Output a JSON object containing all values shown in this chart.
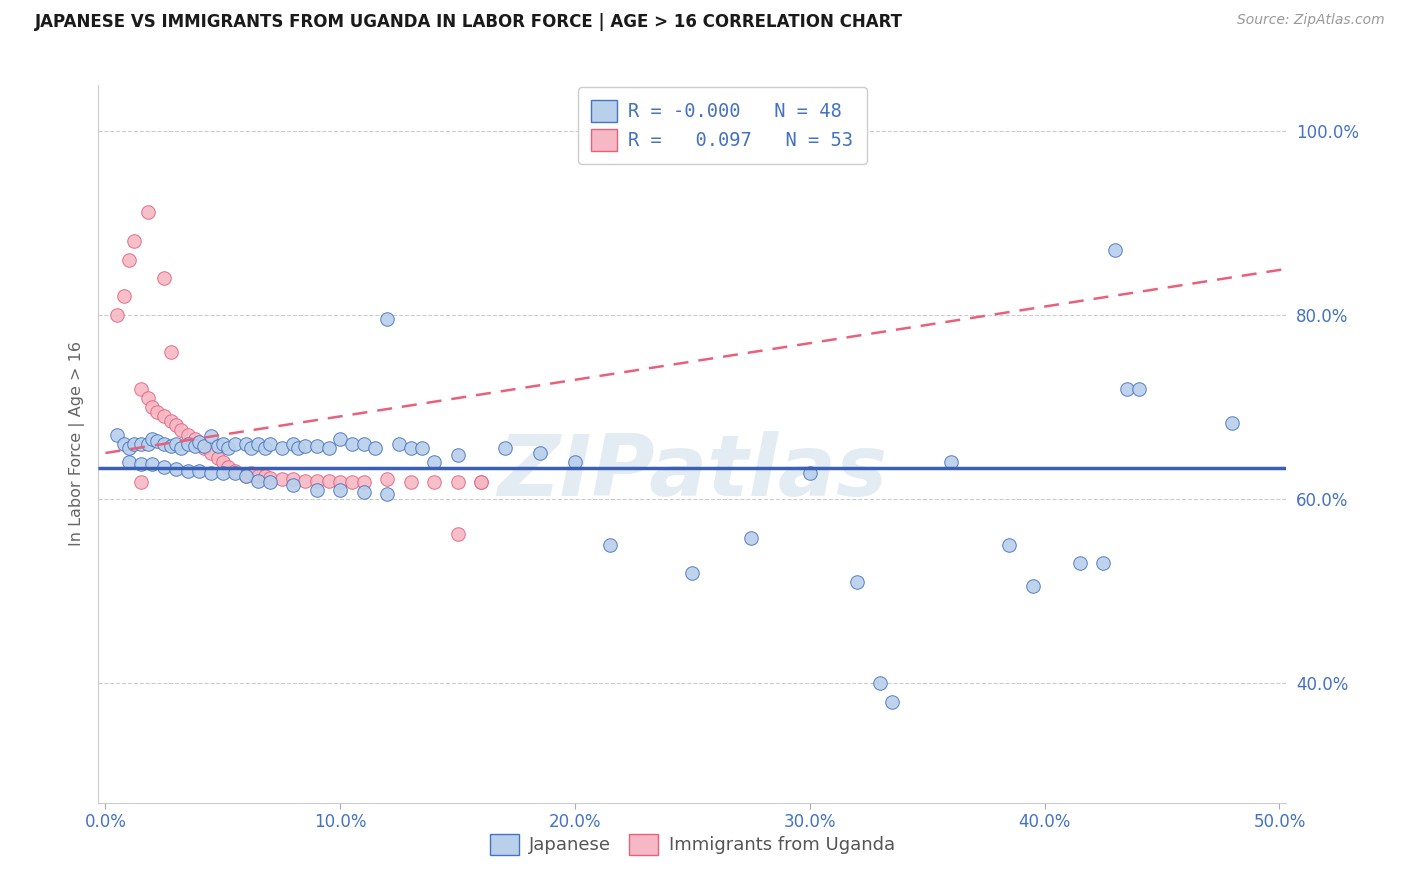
{
  "title": "JAPANESE VS IMMIGRANTS FROM UGANDA IN LABOR FORCE | AGE > 16 CORRELATION CHART",
  "source": "Source: ZipAtlas.com",
  "ylabel": "In Labor Force | Age > 16",
  "xlim": [
    -0.003,
    0.503
  ],
  "ylim": [
    0.27,
    1.05
  ],
  "xtick_vals": [
    0.0,
    0.1,
    0.2,
    0.3,
    0.4,
    0.5
  ],
  "xtick_labels": [
    "0.0%",
    "10.0%",
    "20.0%",
    "30.0%",
    "40.0%",
    "50.0%"
  ],
  "ytick_vals": [
    0.4,
    0.6,
    0.8,
    1.0
  ],
  "ytick_labels": [
    "40.0%",
    "60.0%",
    "80.0%",
    "100.0%"
  ],
  "R1": "-0.000",
  "N1": "48",
  "R2": "0.097",
  "N2": "53",
  "blue_face": "#b8d0ea",
  "blue_edge": "#4472c4",
  "pink_face": "#f5b8c4",
  "pink_edge": "#e8607a",
  "blue_trend_color": "#3a5fb5",
  "pink_trend_color": "#e8607a",
  "grid_color": "#cccccc",
  "bg_color": "#ffffff",
  "watermark": "ZIPatlas",
  "label1": "Japanese",
  "label2": "Immigrants from Uganda",
  "blue_x": [
    0.005,
    0.008,
    0.01,
    0.012,
    0.015,
    0.018,
    0.02,
    0.022,
    0.025,
    0.028,
    0.03,
    0.032,
    0.035,
    0.038,
    0.04,
    0.042,
    0.045,
    0.048,
    0.05,
    0.052,
    0.055,
    0.06,
    0.062,
    0.065,
    0.068,
    0.07,
    0.075,
    0.08,
    0.082,
    0.085,
    0.09,
    0.095,
    0.1,
    0.105,
    0.11,
    0.115,
    0.12,
    0.125,
    0.13,
    0.135,
    0.14,
    0.15,
    0.17,
    0.185,
    0.2,
    0.215,
    0.25,
    0.275,
    0.3,
    0.32,
    0.33,
    0.335,
    0.36,
    0.385,
    0.395,
    0.415,
    0.425,
    0.435,
    0.44,
    0.48,
    0.01,
    0.015,
    0.02,
    0.025,
    0.03,
    0.035,
    0.04,
    0.045,
    0.05,
    0.055,
    0.06,
    0.065,
    0.07,
    0.08,
    0.09,
    0.1,
    0.11,
    0.12,
    0.43
  ],
  "blue_y": [
    0.67,
    0.66,
    0.655,
    0.66,
    0.66,
    0.66,
    0.665,
    0.663,
    0.66,
    0.658,
    0.66,
    0.655,
    0.66,
    0.658,
    0.662,
    0.658,
    0.668,
    0.658,
    0.66,
    0.655,
    0.66,
    0.66,
    0.655,
    0.66,
    0.655,
    0.66,
    0.655,
    0.66,
    0.655,
    0.658,
    0.658,
    0.655,
    0.665,
    0.66,
    0.66,
    0.655,
    0.795,
    0.66,
    0.655,
    0.655,
    0.64,
    0.648,
    0.655,
    0.65,
    0.64,
    0.55,
    0.52,
    0.558,
    0.628,
    0.51,
    0.4,
    0.38,
    0.64,
    0.55,
    0.505,
    0.53,
    0.53,
    0.72,
    0.72,
    0.683,
    0.64,
    0.638,
    0.638,
    0.635,
    0.633,
    0.63,
    0.63,
    0.628,
    0.628,
    0.628,
    0.625,
    0.62,
    0.618,
    0.615,
    0.61,
    0.61,
    0.608,
    0.605,
    0.87
  ],
  "pink_x": [
    0.005,
    0.008,
    0.01,
    0.012,
    0.015,
    0.018,
    0.02,
    0.022,
    0.025,
    0.028,
    0.03,
    0.032,
    0.035,
    0.038,
    0.04,
    0.042,
    0.045,
    0.048,
    0.05,
    0.052,
    0.055,
    0.06,
    0.062,
    0.065,
    0.068,
    0.07,
    0.075,
    0.08,
    0.085,
    0.09,
    0.095,
    0.1,
    0.105,
    0.11,
    0.12,
    0.13,
    0.14,
    0.15,
    0.16,
    0.018,
    0.025,
    0.028,
    0.015,
    0.15,
    0.16
  ],
  "pink_y": [
    0.8,
    0.82,
    0.86,
    0.88,
    0.72,
    0.71,
    0.7,
    0.695,
    0.69,
    0.685,
    0.68,
    0.675,
    0.67,
    0.665,
    0.66,
    0.655,
    0.65,
    0.645,
    0.64,
    0.635,
    0.63,
    0.625,
    0.628,
    0.625,
    0.625,
    0.623,
    0.622,
    0.622,
    0.62,
    0.62,
    0.62,
    0.618,
    0.618,
    0.618,
    0.622,
    0.618,
    0.618,
    0.562,
    0.618,
    0.912,
    0.84,
    0.76,
    0.618,
    0.618,
    0.618
  ],
  "blue_trend_x": [
    -0.003,
    0.503
  ],
  "blue_trend_y": [
    0.634,
    0.634
  ],
  "pink_trend_x": [
    0.0,
    0.503
  ],
  "pink_trend_y": [
    0.65,
    0.85
  ]
}
